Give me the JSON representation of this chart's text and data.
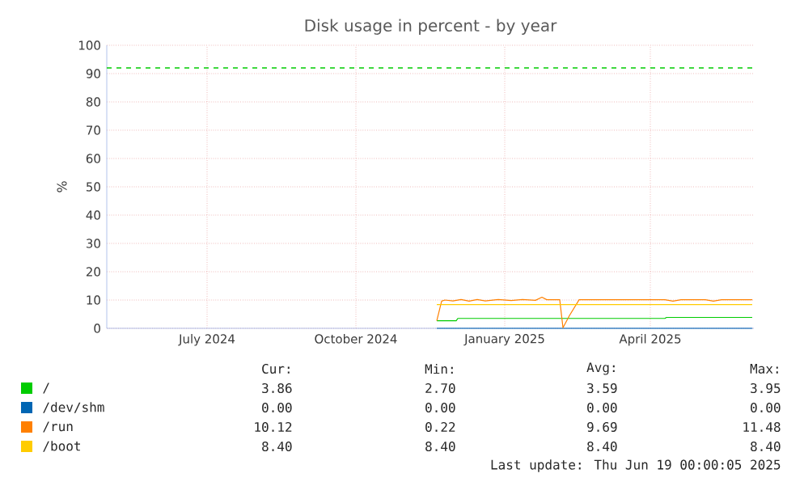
{
  "chart_data": {
    "type": "line",
    "title": "Disk usage in percent - by year",
    "ylabel": "%",
    "xlim": [
      "2024-04-30",
      "2025-06-04"
    ],
    "xticks": [
      {
        "value": "2024-07-01",
        "label": "July 2024"
      },
      {
        "value": "2024-10-01",
        "label": "October 2024"
      },
      {
        "value": "2025-01-01",
        "label": "January 2025"
      },
      {
        "value": "2025-04-01",
        "label": "April 2025"
      }
    ],
    "ylim": [
      0,
      100
    ],
    "yticks": [
      0,
      10,
      20,
      30,
      40,
      50,
      60,
      70,
      80,
      90,
      100
    ],
    "grid": true,
    "legend": "bottom",
    "marker": "none",
    "line_style": "solid",
    "ref_lines": [
      {
        "axis": "y",
        "value": 92,
        "color": "#00cc00",
        "line_style": "dashed"
      }
    ],
    "series": [
      {
        "name": "/",
        "color": "#00cc00",
        "x": [
          "2024-11-20",
          "2024-12-02",
          "2024-12-03",
          "2025-04-10",
          "2025-04-11",
          "2025-06-03"
        ],
        "values": [
          2.7,
          2.7,
          3.5,
          3.5,
          3.86,
          3.86
        ]
      },
      {
        "name": "/dev/shm",
        "color": "#0066b3",
        "x": [
          "2024-11-20",
          "2025-06-03"
        ],
        "values": [
          0,
          0
        ]
      },
      {
        "name": "/run",
        "color": "#ff8000",
        "x": [
          "2024-11-20",
          "2024-11-23",
          "2024-11-25",
          "2024-11-30",
          "2024-12-05",
          "2024-12-10",
          "2024-12-15",
          "2024-12-20",
          "2024-12-28",
          "2025-01-05",
          "2025-01-12",
          "2025-01-20",
          "2025-01-24",
          "2025-01-27",
          "2025-02-04",
          "2025-02-06",
          "2025-02-10",
          "2025-02-16",
          "2025-03-20",
          "2025-04-10",
          "2025-04-15",
          "2025-04-20",
          "2025-05-05",
          "2025-05-10",
          "2025-05-15",
          "2025-06-03"
        ],
        "values": [
          2.7,
          9.6,
          10.0,
          9.7,
          10.2,
          9.6,
          10.2,
          9.7,
          10.2,
          9.8,
          10.2,
          9.9,
          11.0,
          10.1,
          10.1,
          0.22,
          4.5,
          10.1,
          10.1,
          10.1,
          9.6,
          10.1,
          10.1,
          9.6,
          10.1,
          10.12
        ]
      },
      {
        "name": "/boot",
        "color": "#ffcc00",
        "x": [
          "2024-11-20",
          "2025-06-03"
        ],
        "values": [
          8.4,
          8.4
        ]
      }
    ],
    "annotations": [
      "Cur:",
      "Min:",
      "Avg:",
      "Max:",
      "3.86",
      "2.70",
      "3.59",
      "3.95",
      "0.00",
      "0.00",
      "0.00",
      "0.00",
      "10.12",
      "0.22",
      "9.69",
      "11.48",
      "8.40",
      "8.40",
      "8.40",
      "8.40",
      "Last update: Thu Jun 19 00:00:05 2025"
    ]
  }
}
